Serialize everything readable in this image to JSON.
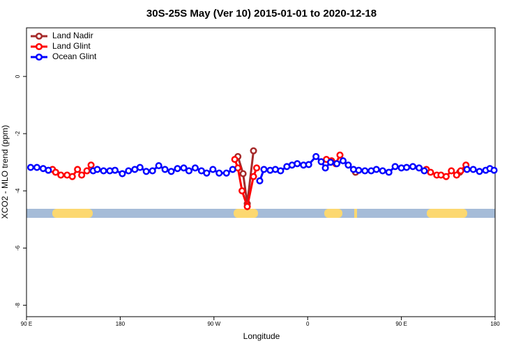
{
  "chart_data": {
    "type": "line",
    "title": "30S-25S May (Ver 10)   2015-01-01 to 2020-12-18",
    "x_label": "Longitude",
    "y_label": "XCO2 - MLO trend (ppm)",
    "xlim": [
      90,
      540
    ],
    "ylim": [
      -8.4,
      1.7
    ],
    "xticks": [
      {
        "value": 90,
        "label": "90 E"
      },
      180,
      {
        "value": 270,
        "label": "90 W"
      },
      {
        "value": 360,
        "label": "0"
      },
      {
        "value": 450,
        "label": "90 E"
      },
      {
        "value": 540,
        "label": "180"
      }
    ],
    "yticks": [
      -8,
      -6,
      -4,
      -2,
      0
    ],
    "legend": "top-left",
    "series": [
      {
        "name": "Land Nadir",
        "color": "#a52a2a",
        "x": [
          293,
          298,
          302,
          308,
          350,
          406,
          450,
          506
        ],
        "values": [
          -2.8,
          -3.4,
          -4.45,
          -2.6,
          null,
          -3.35,
          null,
          -3.35
        ]
      },
      {
        "name": "Land Glint",
        "color": "#ff0000",
        "x": [
          115,
          118,
          123,
          129,
          134,
          139,
          143,
          148,
          152,
          220,
          290,
          293,
          297,
          302,
          308,
          311,
          340,
          378,
          383,
          387,
          391,
          430,
          474,
          478,
          484,
          488,
          493,
          498,
          503,
          507,
          512
        ],
        "values": [
          -3.25,
          -3.35,
          -3.45,
          -3.45,
          -3.5,
          -3.25,
          -3.45,
          -3.3,
          -3.1,
          null,
          -2.9,
          -3.2,
          -4.0,
          -4.55,
          -3.5,
          -3.2,
          null,
          -2.9,
          -2.95,
          -3.05,
          -2.75,
          null,
          -3.25,
          -3.35,
          -3.45,
          -3.45,
          -3.5,
          -3.3,
          -3.45,
          -3.3,
          -3.1
        ]
      },
      {
        "name": "Ocean Glint",
        "color": "#0000ff",
        "x": [
          94,
          100,
          106,
          111,
          130,
          154,
          158,
          164,
          170,
          175,
          182,
          188,
          194,
          199,
          205,
          211,
          217,
          223,
          229,
          235,
          241,
          246,
          252,
          258,
          263,
          269,
          275,
          282,
          288,
          300,
          314,
          318,
          324,
          329,
          334,
          340,
          345,
          350,
          356,
          361,
          368,
          373,
          377,
          382,
          388,
          394,
          399,
          404,
          409,
          415,
          421,
          426,
          432,
          438,
          444,
          450,
          455,
          461,
          467,
          472,
          490,
          513,
          519,
          525,
          531,
          535,
          539
        ],
        "values": [
          -3.18,
          -3.18,
          -3.22,
          -3.28,
          null,
          -3.3,
          -3.25,
          -3.3,
          -3.3,
          -3.28,
          -3.4,
          -3.3,
          -3.25,
          -3.18,
          -3.32,
          -3.3,
          -3.12,
          -3.25,
          -3.32,
          -3.22,
          -3.2,
          -3.3,
          -3.2,
          -3.3,
          -3.38,
          -3.25,
          -3.38,
          -3.38,
          -3.25,
          null,
          -3.65,
          -3.25,
          -3.28,
          -3.25,
          -3.3,
          -3.15,
          -3.1,
          -3.05,
          -3.1,
          -3.08,
          -2.8,
          -2.98,
          -3.2,
          -3.0,
          -3.05,
          -2.95,
          -3.1,
          -3.25,
          -3.28,
          -3.3,
          -3.3,
          -3.25,
          -3.3,
          -3.35,
          -3.15,
          -3.2,
          -3.18,
          -3.15,
          -3.2,
          -3.3,
          null,
          -3.25,
          -3.25,
          -3.32,
          -3.28,
          -3.22,
          -3.28
        ]
      }
    ]
  }
}
